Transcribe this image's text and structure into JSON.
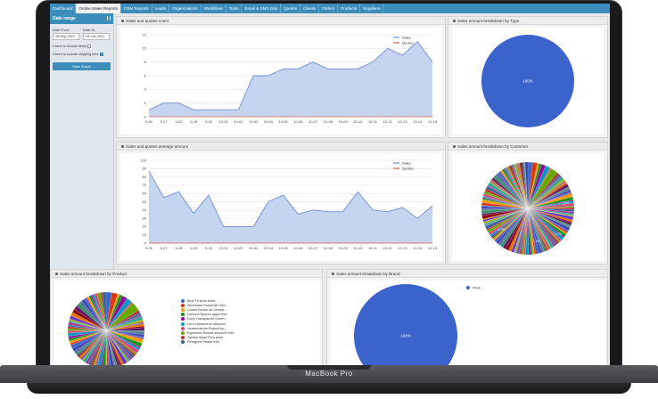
{
  "nav": {
    "tabs": [
      "Dashboard",
      "Online Sales Reports",
      "CRM Reports",
      "Leads",
      "Organizations",
      "Workflows",
      "Tools",
      "Email & SMS Drip",
      "Quotes",
      "Clients",
      "Orders",
      "Products",
      "Suppliers"
    ],
    "active_index": 1
  },
  "sidebar": {
    "title": "Date range",
    "date_from_label": "Date From:",
    "date_from_value": "26-Sep-2021",
    "date_to_label": "Date To:",
    "date_to_value": "15-Oct-2021",
    "taxes_label": "Check to include taxes",
    "shipping_label": "Check to include shipping fees",
    "taxes_checked": false,
    "shipping_checked": true,
    "view_button": "View Graph"
  },
  "panels": {
    "count_title": "Sales and quotes count",
    "type_title": "Sales amount breakdown by Type",
    "average_title": "Sales and quotes average amount",
    "customer_title": "Sales amount breakdown by Customer",
    "product_title": "Sales amount breakdown by Product",
    "brand_title": "Sales amount breakdown by Brand"
  },
  "colors": {
    "sales_fill": "#c5d4ef",
    "sales_line": "#6f8fd6",
    "quotes_line": "#e05a4f",
    "pie_blue": "#3b63cc",
    "nav_blue": "#3c8dbc"
  },
  "chart_data": [
    {
      "type": "area",
      "title": "Sales and quotes count",
      "x": [
        "9-26",
        "9-27",
        "9-28",
        "9-29",
        "9-30",
        "10-01",
        "10-02",
        "10-03",
        "10-04",
        "10-05",
        "10-06",
        "10-07",
        "10-08",
        "10-09",
        "10-10",
        "10-11",
        "10-12",
        "10-13",
        "10-14",
        "10-15"
      ],
      "ylim": [
        0,
        12
      ],
      "yticks": [
        0,
        2,
        4,
        6,
        8,
        10,
        12
      ],
      "series": [
        {
          "name": "Sales",
          "values": [
            1,
            2,
            2,
            1,
            1,
            1,
            1,
            6,
            6,
            7,
            7,
            8,
            7,
            7,
            7,
            8,
            10,
            9,
            11,
            8
          ]
        },
        {
          "name": "Quotes",
          "values": [
            0,
            0,
            0,
            0,
            0,
            0,
            0,
            0,
            0,
            0,
            0,
            0,
            0,
            0,
            0,
            0,
            0,
            0,
            0,
            0
          ]
        }
      ],
      "legend": "top-right"
    },
    {
      "type": "pie",
      "title": "Sales amount breakdown by Type",
      "slices": [
        {
          "label": "100%",
          "value": 100
        }
      ]
    },
    {
      "type": "area",
      "title": "Sales and quotes average amount",
      "x": [
        "9-26",
        "9-27",
        "9-28",
        "9-29",
        "9-30",
        "10-01",
        "10-02",
        "10-03",
        "10-04",
        "10-05",
        "10-06",
        "10-07",
        "10-08",
        "10-09",
        "10-10",
        "10-11",
        "10-12",
        "10-13",
        "10-14",
        "10-15"
      ],
      "ylim": [
        0,
        100
      ],
      "yticks": [
        0,
        10,
        20,
        30,
        40,
        50,
        60,
        70,
        80,
        90,
        100
      ],
      "series": [
        {
          "name": "Sales",
          "values": [
            87,
            55,
            62,
            36,
            58,
            20,
            20,
            20,
            50,
            58,
            35,
            40,
            38,
            38,
            62,
            40,
            38,
            43,
            30,
            45
          ]
        },
        {
          "name": "Quotes",
          "values": [
            0,
            0,
            0,
            0,
            0,
            0,
            0,
            0,
            0,
            0,
            0,
            0,
            0,
            0,
            0,
            0,
            0,
            0,
            0,
            0
          ]
        }
      ],
      "legend": "top-right"
    },
    {
      "type": "pie",
      "title": "Sales amount breakdown by Customer",
      "slices": [
        {
          "label": "1.7%",
          "value": 1.7
        },
        {
          "label": "1.1%",
          "value": 1.1
        },
        {
          "label": "4.7%",
          "value": 4.7
        },
        {
          "label": "1.7%",
          "value": 1.7
        },
        {
          "label": "1.0%",
          "value": 1.0
        }
      ]
    },
    {
      "type": "pie",
      "title": "Sales amount breakdown by Product",
      "legend_entries": [
        "Blue Tit plum trees",
        "Worcester Pearmain mini...",
        "Louise Bonne de Jersey...",
        "Lemons Spoure apple tree",
        "Early Transparent Green...",
        "Lord Lambourne stepover",
        "Herefordshire Russet by...",
        "Egremont Russet stepover tree",
        "Jubilee dwarf Pico plum",
        "Peregrine Peach tree"
      ],
      "legend_colors": [
        "#3b63cc",
        "#dc3912",
        "#ff9900",
        "#109618",
        "#990099",
        "#0099c6",
        "#dd4477",
        "#66aa00",
        "#b82e2e",
        "#316395"
      ]
    },
    {
      "type": "pie",
      "title": "Sales amount breakdown by Brand",
      "slices": [
        {
          "label": "100%",
          "value": 100
        }
      ],
      "legend_entries": [
        "Plum"
      ]
    }
  ]
}
